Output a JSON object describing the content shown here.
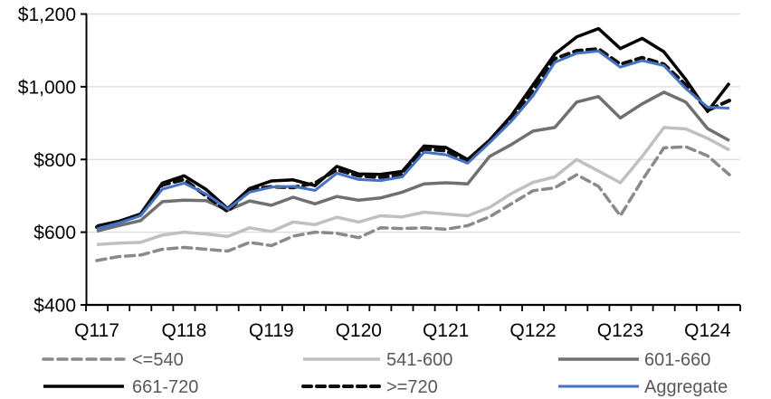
{
  "chart_data": {
    "type": "line",
    "title": "",
    "xlabel": "",
    "ylabel": "",
    "ylim": [
      400,
      1200
    ],
    "grid": "horizontal",
    "legend_position": "bottom",
    "y_ticks": [
      {
        "value": 1200,
        "label": "$1,200"
      },
      {
        "value": 1000,
        "label": "$1,000"
      },
      {
        "value": 800,
        "label": "$800"
      },
      {
        "value": 600,
        "label": "$600"
      },
      {
        "value": 400,
        "label": "$400"
      }
    ],
    "x_tick_labels": [
      "Q117",
      "Q118",
      "Q119",
      "Q120",
      "Q121",
      "Q122",
      "Q123",
      "Q124"
    ],
    "x_quarters": [
      "Q1 2017",
      "Q2 2017",
      "Q3 2017",
      "Q4 2017",
      "Q1 2018",
      "Q2 2018",
      "Q3 2018",
      "Q4 2018",
      "Q1 2019",
      "Q2 2019",
      "Q3 2019",
      "Q4 2019",
      "Q1 2020",
      "Q2 2020",
      "Q3 2020",
      "Q4 2020",
      "Q1 2021",
      "Q2 2021",
      "Q3 2021",
      "Q4 2021",
      "Q1 2022",
      "Q2 2022",
      "Q3 2022",
      "Q4 2022",
      "Q1 2023",
      "Q2 2023",
      "Q3 2023",
      "Q4 2023",
      "Q1 2024",
      "Q2 2024"
    ],
    "series": [
      {
        "name": "<=540",
        "color": "#8A8A8A",
        "style": "dashed",
        "width": 3.5,
        "values": [
          522,
          533,
          537,
          553,
          558,
          553,
          548,
          572,
          563,
          589,
          600,
          597,
          585,
          612,
          610,
          612,
          608,
          618,
          642,
          678,
          714,
          722,
          758,
          726,
          645,
          743,
          832,
          835,
          810,
          758
        ]
      },
      {
        "name": "541-600",
        "color": "#C0C0C0",
        "style": "solid",
        "width": 3.5,
        "values": [
          566,
          570,
          572,
          592,
          600,
          595,
          588,
          612,
          602,
          628,
          621,
          641,
          628,
          645,
          642,
          655,
          650,
          645,
          668,
          706,
          737,
          752,
          800,
          768,
          736,
          808,
          888,
          884,
          858,
          826
        ]
      },
      {
        "name": "601-660",
        "color": "#707070",
        "style": "solid",
        "width": 3.5,
        "values": [
          603,
          618,
          632,
          684,
          688,
          687,
          660,
          686,
          674,
          696,
          678,
          698,
          688,
          694,
          710,
          733,
          736,
          733,
          808,
          841,
          878,
          888,
          958,
          973,
          914,
          953,
          985,
          958,
          885,
          852
        ]
      },
      {
        "name": "661-720",
        "color": "#000000",
        "style": "solid",
        "width": 3.5,
        "values": [
          617,
          630,
          650,
          735,
          755,
          718,
          665,
          720,
          741,
          744,
          728,
          781,
          760,
          759,
          767,
          837,
          833,
          800,
          853,
          920,
          1005,
          1090,
          1137,
          1160,
          1105,
          1133,
          1096,
          1020,
          932,
          1010
        ]
      },
      {
        "name": ">=720",
        "color": "#0D0D0D",
        "style": "dashed",
        "width": 4,
        "values": [
          614,
          627,
          647,
          730,
          745,
          700,
          657,
          718,
          725,
          723,
          735,
          772,
          755,
          751,
          758,
          829,
          824,
          795,
          850,
          912,
          990,
          1077,
          1099,
          1104,
          1062,
          1080,
          1062,
          1005,
          935,
          962
        ]
      },
      {
        "name": "Aggregate",
        "color": "#4472C4",
        "style": "solid",
        "width": 3,
        "values": [
          609,
          625,
          645,
          718,
          735,
          705,
          664,
          710,
          724,
          726,
          715,
          762,
          745,
          742,
          752,
          820,
          813,
          790,
          846,
          905,
          975,
          1067,
          1092,
          1098,
          1054,
          1072,
          1058,
          995,
          944,
          941
        ]
      }
    ],
    "colors": {
      "gridline": "#DCDCDC",
      "axis": "#000000",
      "axis_label_text": "#000000",
      "legend_text": "#595959",
      "background": "#FFFFFF",
      "accent_blue": "#4472C4"
    }
  }
}
